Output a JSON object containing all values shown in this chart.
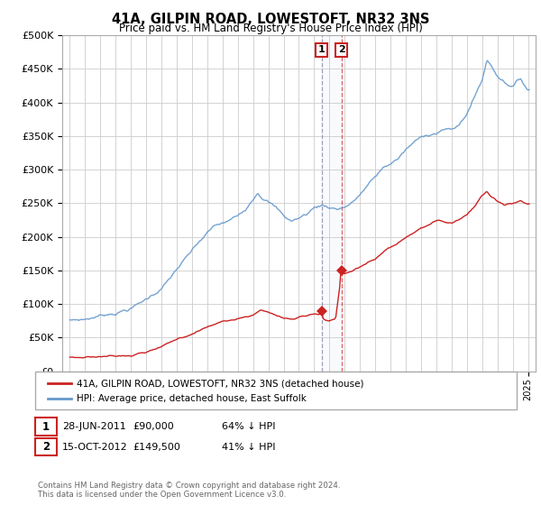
{
  "title": "41A, GILPIN ROAD, LOWESTOFT, NR32 3NS",
  "subtitle": "Price paid vs. HM Land Registry's House Price Index (HPI)",
  "legend_line1": "41A, GILPIN ROAD, LOWESTOFT, NR32 3NS (detached house)",
  "legend_line2": "HPI: Average price, detached house, East Suffolk",
  "transaction1_date": "28-JUN-2011",
  "transaction1_price": 90000,
  "transaction1_label": "64% ↓ HPI",
  "transaction2_date": "15-OCT-2012",
  "transaction2_price": 149500,
  "transaction2_label": "41% ↓ HPI",
  "footer": "Contains HM Land Registry data © Crown copyright and database right 2024.\nThis data is licensed under the Open Government Licence v3.0.",
  "hpi_color": "#6699CC",
  "price_color": "#CC2222",
  "transaction1_x": 2011.49,
  "transaction2_x": 2012.79,
  "background_color": "#ffffff",
  "grid_color": "#cccccc",
  "ylim_min": 0,
  "ylim_max": 500000,
  "xlim_min": 1994.5,
  "xlim_max": 2025.5,
  "hpi_segments": [
    [
      1995.0,
      75000
    ],
    [
      1995.5,
      76000
    ],
    [
      1996.0,
      77000
    ],
    [
      1996.5,
      80000
    ],
    [
      1997.0,
      83000
    ],
    [
      1997.5,
      86000
    ],
    [
      1998.0,
      89000
    ],
    [
      1998.5,
      93000
    ],
    [
      1999.0,
      97000
    ],
    [
      1999.5,
      103000
    ],
    [
      2000.0,
      110000
    ],
    [
      2000.5,
      118000
    ],
    [
      2001.0,
      128000
    ],
    [
      2001.5,
      140000
    ],
    [
      2002.0,
      155000
    ],
    [
      2002.5,
      168000
    ],
    [
      2003.0,
      180000
    ],
    [
      2003.5,
      193000
    ],
    [
      2004.0,
      205000
    ],
    [
      2004.5,
      215000
    ],
    [
      2005.0,
      218000
    ],
    [
      2005.5,
      222000
    ],
    [
      2006.0,
      228000
    ],
    [
      2006.5,
      240000
    ],
    [
      2007.0,
      258000
    ],
    [
      2007.3,
      270000
    ],
    [
      2007.5,
      265000
    ],
    [
      2008.0,
      258000
    ],
    [
      2008.5,
      248000
    ],
    [
      2009.0,
      235000
    ],
    [
      2009.5,
      228000
    ],
    [
      2010.0,
      232000
    ],
    [
      2010.5,
      238000
    ],
    [
      2011.0,
      248000
    ],
    [
      2011.5,
      252000
    ],
    [
      2012.0,
      250000
    ],
    [
      2012.5,
      248000
    ],
    [
      2013.0,
      252000
    ],
    [
      2013.5,
      258000
    ],
    [
      2014.0,
      270000
    ],
    [
      2014.5,
      283000
    ],
    [
      2015.0,
      295000
    ],
    [
      2015.5,
      308000
    ],
    [
      2016.0,
      315000
    ],
    [
      2016.5,
      323000
    ],
    [
      2017.0,
      335000
    ],
    [
      2017.5,
      345000
    ],
    [
      2018.0,
      352000
    ],
    [
      2018.5,
      358000
    ],
    [
      2019.0,
      362000
    ],
    [
      2019.5,
      368000
    ],
    [
      2020.0,
      365000
    ],
    [
      2020.5,
      372000
    ],
    [
      2021.0,
      390000
    ],
    [
      2021.5,
      415000
    ],
    [
      2022.0,
      440000
    ],
    [
      2022.3,
      470000
    ],
    [
      2022.5,
      465000
    ],
    [
      2023.0,
      448000
    ],
    [
      2023.5,
      440000
    ],
    [
      2024.0,
      435000
    ],
    [
      2024.5,
      445000
    ],
    [
      2025.0,
      430000
    ]
  ],
  "red_segments": [
    [
      1995.0,
      20000
    ],
    [
      1996.0,
      21000
    ],
    [
      1997.0,
      22500
    ],
    [
      1998.0,
      25000
    ],
    [
      1999.0,
      28000
    ],
    [
      2000.0,
      33000
    ],
    [
      2001.0,
      40000
    ],
    [
      2002.0,
      50000
    ],
    [
      2003.0,
      60000
    ],
    [
      2004.0,
      70000
    ],
    [
      2005.0,
      78000
    ],
    [
      2006.0,
      82000
    ],
    [
      2007.0,
      88000
    ],
    [
      2007.5,
      95000
    ],
    [
      2008.0,
      92000
    ],
    [
      2009.0,
      83000
    ],
    [
      2009.5,
      82000
    ],
    [
      2010.0,
      85000
    ],
    [
      2010.5,
      88000
    ],
    [
      2011.0,
      92000
    ],
    [
      2011.49,
      90000
    ],
    [
      2011.55,
      85000
    ],
    [
      2011.7,
      82000
    ],
    [
      2012.0,
      80000
    ],
    [
      2012.4,
      82000
    ],
    [
      2012.79,
      149500
    ],
    [
      2013.0,
      148000
    ],
    [
      2013.5,
      152000
    ],
    [
      2014.0,
      158000
    ],
    [
      2015.0,
      168000
    ],
    [
      2016.0,
      182000
    ],
    [
      2017.0,
      195000
    ],
    [
      2018.0,
      208000
    ],
    [
      2019.0,
      218000
    ],
    [
      2020.0,
      215000
    ],
    [
      2021.0,
      228000
    ],
    [
      2021.5,
      242000
    ],
    [
      2022.0,
      258000
    ],
    [
      2022.3,
      265000
    ],
    [
      2022.5,
      258000
    ],
    [
      2023.0,
      250000
    ],
    [
      2023.5,
      245000
    ],
    [
      2024.0,
      248000
    ],
    [
      2024.5,
      252000
    ],
    [
      2025.0,
      248000
    ]
  ]
}
